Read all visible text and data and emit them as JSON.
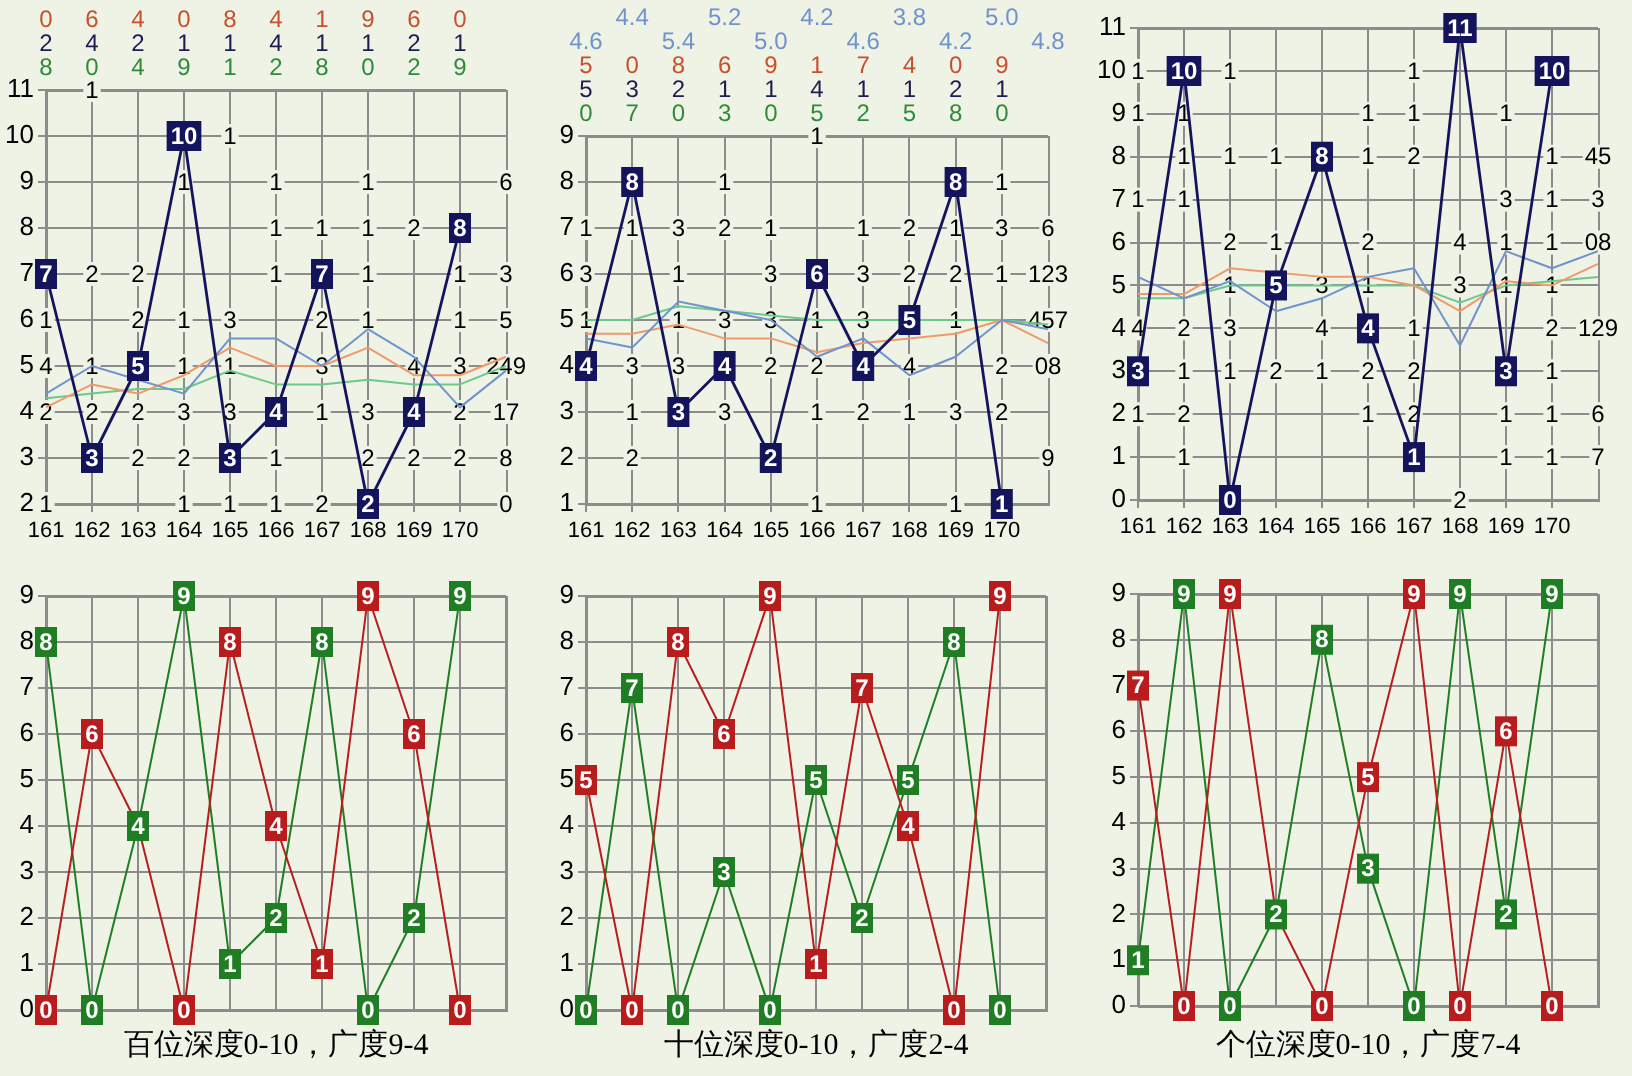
{
  "chart_data": [
    {
      "type": "line",
      "xlim": [
        161,
        171
      ],
      "xticks": [
        161,
        162,
        163,
        164,
        165,
        166,
        167,
        168,
        169,
        170
      ],
      "ylim": [
        2,
        11
      ],
      "yticks": [
        2,
        3,
        4,
        5,
        6,
        7,
        8,
        9,
        10,
        11
      ],
      "grid": true,
      "series": [
        {
          "color": "#14145c",
          "marker": "square",
          "x": [
            161,
            162,
            163,
            164,
            165,
            166,
            167,
            168,
            169,
            170
          ],
          "values": [
            7,
            3,
            5,
            10,
            3,
            4,
            7,
            2,
            4,
            8
          ],
          "value_labels": [
            "7",
            "3",
            "5",
            "10",
            "3",
            "4",
            "7",
            "2",
            "4",
            "8"
          ]
        },
        {
          "color": "#6f93cc",
          "x": [
            161,
            162,
            163,
            164,
            165,
            166,
            167,
            168,
            169,
            170,
            171
          ],
          "values": [
            4.4,
            5.0,
            null,
            4.4,
            5.6,
            5.6,
            5.0,
            5.8,
            5.2,
            4.1,
            4.9
          ]
        },
        {
          "color": "#f09a6c",
          "x": [
            161,
            162,
            163,
            164,
            165,
            166,
            167,
            168,
            169,
            170,
            171
          ],
          "values": [
            4.1,
            4.6,
            4.4,
            4.8,
            5.4,
            5.0,
            5.0,
            5.4,
            4.8,
            4.8,
            5.2
          ]
        },
        {
          "color": "#6cc98c",
          "x": [
            161,
            162,
            163,
            164,
            165,
            166,
            167,
            168,
            169,
            170,
            171
          ],
          "values": [
            4.3,
            4.4,
            4.5,
            4.5,
            4.9,
            4.6,
            4.6,
            4.7,
            4.6,
            4.6,
            5.0
          ]
        }
      ],
      "annotations": [
        "0 6 4 0 8 4 1 9 6 0",
        "2 4 2 1 1 4 1 1 2 1",
        "8 0 4 9 1 2 8 0 2 9",
        {
          "text": "1",
          "x": 162,
          "y": 11
        },
        {
          "text": "1",
          "x": 165,
          "y": 10
        },
        {
          "text": "1",
          "x": 164,
          "y": 9
        },
        {
          "text": "1",
          "x": 166,
          "y": 9
        },
        {
          "text": "1",
          "x": 168,
          "y": 9
        },
        {
          "text": "6",
          "x": 171,
          "y": 9
        },
        {
          "text": "1",
          "x": 166,
          "y": 8
        },
        {
          "text": "1",
          "x": 167,
          "y": 8
        },
        {
          "text": "1",
          "x": 168,
          "y": 8
        },
        {
          "text": "2",
          "x": 169,
          "y": 8
        },
        {
          "text": "2",
          "x": 162,
          "y": 7
        },
        {
          "text": "2",
          "x": 163,
          "y": 7
        },
        {
          "text": "1",
          "x": 166,
          "y": 7
        },
        {
          "text": "1",
          "x": 168,
          "y": 7
        },
        {
          "text": "1",
          "x": 170,
          "y": 7
        },
        {
          "text": "3",
          "x": 171,
          "y": 7
        },
        {
          "text": "1",
          "x": 161,
          "y": 6
        },
        {
          "text": "2",
          "x": 163,
          "y": 6
        },
        {
          "text": "1",
          "x": 164,
          "y": 6
        },
        {
          "text": "3",
          "x": 165,
          "y": 6
        },
        {
          "text": "2",
          "x": 167,
          "y": 6
        },
        {
          "text": "1",
          "x": 168,
          "y": 6
        },
        {
          "text": "1",
          "x": 170,
          "y": 6
        },
        {
          "text": "5",
          "x": 171,
          "y": 6
        },
        {
          "text": "4",
          "x": 161,
          "y": 5
        },
        {
          "text": "1",
          "x": 162,
          "y": 5
        },
        {
          "text": "1",
          "x": 164,
          "y": 5
        },
        {
          "text": "1",
          "x": 165,
          "y": 5
        },
        {
          "text": "3",
          "x": 167,
          "y": 5
        },
        {
          "text": "4",
          "x": 169,
          "y": 5
        },
        {
          "text": "3",
          "x": 170,
          "y": 5
        },
        {
          "text": "249",
          "x": 171,
          "y": 5
        },
        {
          "text": "2",
          "x": 161,
          "y": 4
        },
        {
          "text": "2",
          "x": 162,
          "y": 4
        },
        {
          "text": "2",
          "x": 163,
          "y": 4
        },
        {
          "text": "3",
          "x": 164,
          "y": 4
        },
        {
          "text": "3",
          "x": 165,
          "y": 4
        },
        {
          "text": "1",
          "x": 167,
          "y": 4
        },
        {
          "text": "3",
          "x": 168,
          "y": 4
        },
        {
          "text": "2",
          "x": 170,
          "y": 4
        },
        {
          "text": "17",
          "x": 171,
          "y": 4
        },
        {
          "text": "2",
          "x": 163,
          "y": 3
        },
        {
          "text": "2",
          "x": 164,
          "y": 3
        },
        {
          "text": "1",
          "x": 166,
          "y": 3
        },
        {
          "text": "2",
          "x": 168,
          "y": 3
        },
        {
          "text": "2",
          "x": 169,
          "y": 3
        },
        {
          "text": "2",
          "x": 170,
          "y": 3
        },
        {
          "text": "8",
          "x": 171,
          "y": 3
        },
        {
          "text": "1",
          "x": 161,
          "y": 2
        },
        {
          "text": "1",
          "x": 164,
          "y": 2
        },
        {
          "text": "1",
          "x": 165,
          "y": 2
        },
        {
          "text": "1",
          "x": 166,
          "y": 2
        },
        {
          "text": "2",
          "x": 167,
          "y": 2
        },
        {
          "text": "0",
          "x": 171,
          "y": 2
        }
      ]
    },
    {
      "type": "line",
      "xlim": [
        161,
        171
      ],
      "xticks": [
        161,
        162,
        163,
        164,
        165,
        166,
        167,
        168,
        169,
        170
      ],
      "ylim": [
        1,
        9
      ],
      "yticks": [
        1,
        2,
        3,
        4,
        5,
        6,
        7,
        8,
        9
      ],
      "grid": true,
      "series": [
        {
          "color": "#14145c",
          "marker": "square",
          "x": [
            161,
            162,
            163,
            164,
            165,
            166,
            167,
            168,
            169,
            170
          ],
          "values": [
            4,
            8,
            3,
            4,
            2,
            6,
            4,
            5,
            8,
            1
          ],
          "value_labels": [
            "4",
            "8",
            "3",
            "4",
            "2",
            "6",
            "4",
            "5",
            "8",
            "1"
          ]
        },
        {
          "color": "#6f93cc",
          "x": [
            161,
            162,
            163,
            164,
            165,
            166,
            167,
            168,
            169,
            170,
            171
          ],
          "values": [
            4.6,
            4.4,
            5.4,
            5.2,
            5.0,
            4.2,
            4.6,
            3.8,
            4.2,
            5.0,
            4.8
          ]
        },
        {
          "color": "#f09a6c",
          "x": [
            161,
            162,
            163,
            164,
            165,
            166,
            167,
            168,
            169,
            170,
            171
          ],
          "values": [
            4.7,
            4.7,
            4.9,
            4.6,
            4.6,
            4.3,
            4.5,
            4.6,
            4.7,
            5.0,
            4.5
          ]
        },
        {
          "color": "#6cc98c",
          "x": [
            161,
            162,
            163,
            164,
            165,
            166,
            167,
            168,
            169,
            170,
            171
          ],
          "values": [
            5.0,
            5.0,
            5.3,
            5.2,
            5.1,
            5.0,
            5.0,
            null,
            5.0,
            5.0,
            4.9
          ]
        }
      ],
      "annotations": [
        "4.4 5.2 4.2 3.8 5.0",
        "4.6 5.4 5.0 4.6 4.2 4.8",
        "5 0 8 6 9 1 7 4 0 9",
        "5 3 2 1 1 4 1 1 2 1",
        "0 7 0 3 0 5 2 5 8 0",
        {
          "text": "1",
          "x": 166,
          "y": 9
        },
        {
          "text": "1",
          "x": 164,
          "y": 8
        },
        {
          "text": "1",
          "x": 170,
          "y": 8
        },
        {
          "text": "1",
          "x": 161,
          "y": 7
        },
        {
          "text": "1",
          "x": 162,
          "y": 7
        },
        {
          "text": "3",
          "x": 163,
          "y": 7
        },
        {
          "text": "2",
          "x": 164,
          "y": 7
        },
        {
          "text": "1",
          "x": 165,
          "y": 7
        },
        {
          "text": "1",
          "x": 167,
          "y": 7
        },
        {
          "text": "2",
          "x": 168,
          "y": 7
        },
        {
          "text": "1",
          "x": 169,
          "y": 7
        },
        {
          "text": "3",
          "x": 170,
          "y": 7
        },
        {
          "text": "6",
          "x": 171,
          "y": 7
        },
        {
          "text": "3",
          "x": 161,
          "y": 6
        },
        {
          "text": "1",
          "x": 163,
          "y": 6
        },
        {
          "text": "3",
          "x": 165,
          "y": 6
        },
        {
          "text": "3",
          "x": 167,
          "y": 6
        },
        {
          "text": "2",
          "x": 168,
          "y": 6
        },
        {
          "text": "2",
          "x": 169,
          "y": 6
        },
        {
          "text": "1",
          "x": 170,
          "y": 6
        },
        {
          "text": "123",
          "x": 171,
          "y": 6
        },
        {
          "text": "1",
          "x": 161,
          "y": 5
        },
        {
          "text": "1",
          "x": 163,
          "y": 5
        },
        {
          "text": "3",
          "x": 164,
          "y": 5
        },
        {
          "text": "3",
          "x": 165,
          "y": 5
        },
        {
          "text": "1",
          "x": 166,
          "y": 5
        },
        {
          "text": "3",
          "x": 167,
          "y": 5
        },
        {
          "text": "1",
          "x": 169,
          "y": 5
        },
        {
          "text": "457",
          "x": 171,
          "y": 5
        },
        {
          "text": "3",
          "x": 162,
          "y": 4
        },
        {
          "text": "3",
          "x": 163,
          "y": 4
        },
        {
          "text": "2",
          "x": 165,
          "y": 4
        },
        {
          "text": "2",
          "x": 166,
          "y": 4
        },
        {
          "text": "4",
          "x": 168,
          "y": 4
        },
        {
          "text": "2",
          "x": 170,
          "y": 4
        },
        {
          "text": "08",
          "x": 171,
          "y": 4
        },
        {
          "text": "1",
          "x": 162,
          "y": 3
        },
        {
          "text": "3",
          "x": 164,
          "y": 3
        },
        {
          "text": "1",
          "x": 166,
          "y": 3
        },
        {
          "text": "2",
          "x": 167,
          "y": 3
        },
        {
          "text": "1",
          "x": 168,
          "y": 3
        },
        {
          "text": "3",
          "x": 169,
          "y": 3
        },
        {
          "text": "2",
          "x": 170,
          "y": 3
        },
        {
          "text": "2",
          "x": 162,
          "y": 2
        },
        {
          "text": "9",
          "x": 171,
          "y": 2
        },
        {
          "text": "1",
          "x": 166,
          "y": 1
        },
        {
          "text": "1",
          "x": 169,
          "y": 1
        }
      ]
    },
    {
      "type": "line",
      "xlim": [
        161,
        171
      ],
      "xticks": [
        161,
        162,
        163,
        164,
        165,
        166,
        167,
        168,
        169,
        170
      ],
      "ylim": [
        0,
        11
      ],
      "yticks": [
        0,
        1,
        2,
        3,
        4,
        5,
        6,
        7,
        8,
        9,
        10,
        11
      ],
      "grid": true,
      "series": [
        {
          "color": "#14145c",
          "marker": "square",
          "x": [
            161,
            162,
            163,
            164,
            165,
            166,
            167,
            168,
            169,
            170
          ],
          "values": [
            3,
            10,
            0,
            5,
            8,
            4,
            1,
            11,
            3,
            10
          ],
          "value_labels": [
            "3",
            "10",
            "0",
            "5",
            "8",
            "4",
            "1",
            "11",
            "3",
            "10"
          ]
        },
        {
          "color": "#6f93cc",
          "x": [
            161,
            162,
            163,
            164,
            165,
            166,
            167,
            168,
            169,
            170,
            171
          ],
          "values": [
            5.2,
            4.7,
            5.1,
            4.4,
            4.7,
            5.2,
            5.4,
            3.6,
            5.8,
            5.4,
            5.8
          ]
        },
        {
          "color": "#f09a6c",
          "x": [
            161,
            162,
            163,
            164,
            165,
            166,
            167,
            168,
            169,
            170,
            171
          ],
          "values": [
            4.8,
            4.8,
            5.4,
            null,
            5.2,
            5.2,
            5.0,
            4.4,
            5.1,
            5.0,
            5.5
          ]
        },
        {
          "color": "#6cc98c",
          "x": [
            161,
            162,
            163,
            164,
            165,
            166,
            167,
            168,
            169,
            170,
            171
          ],
          "values": [
            4.7,
            4.7,
            5.0,
            null,
            5.0,
            5.0,
            5.0,
            4.6,
            5.0,
            5.1,
            5.2
          ]
        }
      ],
      "annotations": [
        {
          "text": "1",
          "x": 161,
          "y": 10
        },
        {
          "text": "1",
          "x": 163,
          "y": 10
        },
        {
          "text": "1",
          "x": 167,
          "y": 10
        },
        {
          "text": "1",
          "x": 161,
          "y": 9
        },
        {
          "text": "1",
          "x": 162,
          "y": 9
        },
        {
          "text": "1",
          "x": 166,
          "y": 9
        },
        {
          "text": "1",
          "x": 167,
          "y": 9
        },
        {
          "text": "1",
          "x": 169,
          "y": 9
        },
        {
          "text": "1",
          "x": 162,
          "y": 8
        },
        {
          "text": "1",
          "x": 163,
          "y": 8
        },
        {
          "text": "1",
          "x": 164,
          "y": 8
        },
        {
          "text": "1",
          "x": 166,
          "y": 8
        },
        {
          "text": "2",
          "x": 167,
          "y": 8
        },
        {
          "text": "1",
          "x": 170,
          "y": 8
        },
        {
          "text": "45",
          "x": 171,
          "y": 8
        },
        {
          "text": "1",
          "x": 161,
          "y": 7
        },
        {
          "text": "1",
          "x": 162,
          "y": 7
        },
        {
          "text": "3",
          "x": 169,
          "y": 7
        },
        {
          "text": "1",
          "x": 170,
          "y": 7
        },
        {
          "text": "3",
          "x": 171,
          "y": 7
        },
        {
          "text": "2",
          "x": 163,
          "y": 6
        },
        {
          "text": "1",
          "x": 164,
          "y": 6
        },
        {
          "text": "2",
          "x": 166,
          "y": 6
        },
        {
          "text": "4",
          "x": 168,
          "y": 6
        },
        {
          "text": "1",
          "x": 169,
          "y": 6
        },
        {
          "text": "1",
          "x": 170,
          "y": 6
        },
        {
          "text": "08",
          "x": 171,
          "y": 6
        },
        {
          "text": "1",
          "x": 163,
          "y": 5
        },
        {
          "text": "3",
          "x": 165,
          "y": 5
        },
        {
          "text": "1",
          "x": 166,
          "y": 5
        },
        {
          "text": "3",
          "x": 168,
          "y": 5
        },
        {
          "text": "1",
          "x": 169,
          "y": 5
        },
        {
          "text": "1",
          "x": 170,
          "y": 5
        },
        {
          "text": "4",
          "x": 161,
          "y": 4
        },
        {
          "text": "2",
          "x": 162,
          "y": 4
        },
        {
          "text": "3",
          "x": 163,
          "y": 4
        },
        {
          "text": "4",
          "x": 165,
          "y": 4
        },
        {
          "text": "1",
          "x": 167,
          "y": 4
        },
        {
          "text": "2",
          "x": 170,
          "y": 4
        },
        {
          "text": "129",
          "x": 171,
          "y": 4
        },
        {
          "text": "1",
          "x": 162,
          "y": 3
        },
        {
          "text": "1",
          "x": 163,
          "y": 3
        },
        {
          "text": "2",
          "x": 164,
          "y": 3
        },
        {
          "text": "1",
          "x": 165,
          "y": 3
        },
        {
          "text": "2",
          "x": 166,
          "y": 3
        },
        {
          "text": "2",
          "x": 167,
          "y": 3
        },
        {
          "text": "1",
          "x": 170,
          "y": 3
        },
        {
          "text": "1",
          "x": 161,
          "y": 2
        },
        {
          "text": "2",
          "x": 162,
          "y": 2
        },
        {
          "text": "1",
          "x": 166,
          "y": 2
        },
        {
          "text": "2",
          "x": 167,
          "y": 2
        },
        {
          "text": "1",
          "x": 169,
          "y": 2
        },
        {
          "text": "1",
          "x": 170,
          "y": 2
        },
        {
          "text": "6",
          "x": 171,
          "y": 2
        },
        {
          "text": "1",
          "x": 162,
          "y": 1
        },
        {
          "text": "1",
          "x": 169,
          "y": 1
        },
        {
          "text": "1",
          "x": 170,
          "y": 1
        },
        {
          "text": "7",
          "x": 171,
          "y": 1
        },
        {
          "text": "2",
          "x": 168,
          "y": 0
        }
      ]
    },
    {
      "type": "line",
      "categories": [
        null,
        null,
        null,
        null,
        null,
        null,
        null,
        null,
        null,
        null,
        null
      ],
      "ylim": [
        0,
        9
      ],
      "yticks": [
        0,
        1,
        2,
        3,
        4,
        5,
        6,
        7,
        8,
        9
      ],
      "grid": true,
      "tick_labels": "y",
      "marker": "square",
      "xlabel": "百位深度0-10，广度9-4",
      "series": [
        {
          "color": "#b81c1c",
          "values": [
            0,
            6,
            4,
            0,
            8,
            4,
            1,
            9,
            6,
            0,
            null
          ],
          "value_labels": [
            "0",
            "6",
            null,
            "0",
            "8",
            "4",
            "1",
            "9",
            "6",
            "0",
            null
          ]
        },
        {
          "color": "#1f7d23",
          "values": [
            8,
            0,
            4,
            9,
            1,
            2,
            8,
            0,
            2,
            9,
            null
          ],
          "value_labels": [
            "8",
            "0",
            "4",
            "9",
            "1",
            "2",
            "8",
            "0",
            "2",
            "9",
            null
          ]
        }
      ]
    },
    {
      "type": "line",
      "categories": [
        null,
        null,
        null,
        null,
        null,
        null,
        null,
        null,
        null,
        null,
        null
      ],
      "ylim": [
        0,
        9
      ],
      "yticks": [
        0,
        1,
        2,
        3,
        4,
        5,
        6,
        7,
        8,
        9
      ],
      "grid": true,
      "tick_labels": "y",
      "marker": "square",
      "xlabel": "十位深度0-10，广度2-4",
      "series": [
        {
          "color": "#b81c1c",
          "values": [
            5,
            0,
            8,
            6,
            9,
            1,
            7,
            4,
            0,
            9,
            null
          ],
          "value_labels": [
            "5",
            "0",
            "8",
            "6",
            "9",
            "1",
            "7",
            "4",
            "0",
            "9",
            null
          ]
        },
        {
          "color": "#1f7d23",
          "values": [
            0,
            7,
            0,
            3,
            0,
            5,
            2,
            5,
            8,
            0,
            null
          ],
          "value_labels": [
            "0",
            "7",
            "0",
            "3",
            "0",
            "5",
            "2",
            "5",
            "8",
            "0",
            null
          ]
        }
      ]
    },
    {
      "type": "line",
      "categories": [
        null,
        null,
        null,
        null,
        null,
        null,
        null,
        null,
        null,
        null,
        null
      ],
      "ylim": [
        0,
        9
      ],
      "yticks": [
        0,
        1,
        2,
        3,
        4,
        5,
        6,
        7,
        8,
        9
      ],
      "grid": true,
      "tick_labels": "y",
      "marker": "square",
      "xlabel": "个位深度0-10，广度7-4",
      "series": [
        {
          "color": "#b81c1c",
          "values": [
            7,
            0,
            9,
            2,
            0,
            5,
            9,
            0,
            6,
            0,
            null
          ],
          "value_labels": [
            "7",
            "0",
            "9",
            null,
            "0",
            "5",
            "9",
            "0",
            "6",
            "0",
            null
          ]
        },
        {
          "color": "#1f7d23",
          "values": [
            1,
            9,
            0,
            2,
            8,
            3,
            0,
            9,
            2,
            9,
            null
          ],
          "value_labels": [
            "1",
            "9",
            "0",
            "2",
            "8",
            "3",
            "0",
            "9",
            "2",
            "9",
            null
          ]
        }
      ]
    }
  ]
}
